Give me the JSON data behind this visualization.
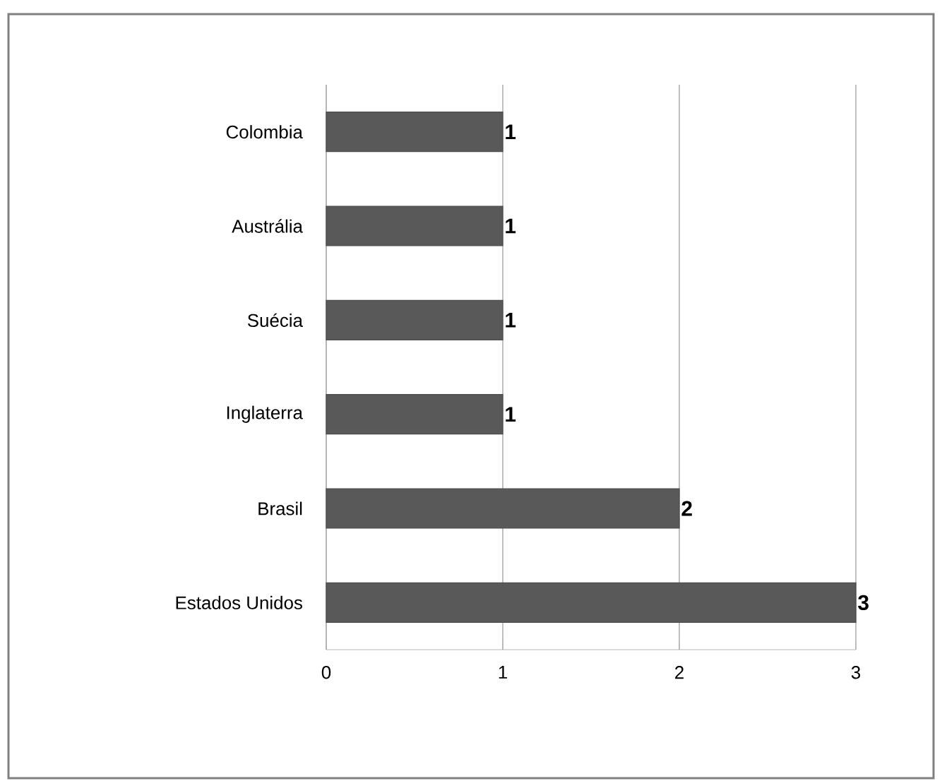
{
  "chart_data": {
    "type": "bar",
    "orientation": "horizontal",
    "categories": [
      "Colombia",
      "Austrália",
      "Suécia",
      "Inglaterra",
      "Brasil",
      "Estados Unidos"
    ],
    "values": [
      1,
      1,
      1,
      1,
      2,
      3
    ],
    "color": "#595959",
    "xlim": [
      0,
      3
    ],
    "xticks": [
      0,
      1,
      2,
      3
    ],
    "grid": "x",
    "data_labels": true
  }
}
